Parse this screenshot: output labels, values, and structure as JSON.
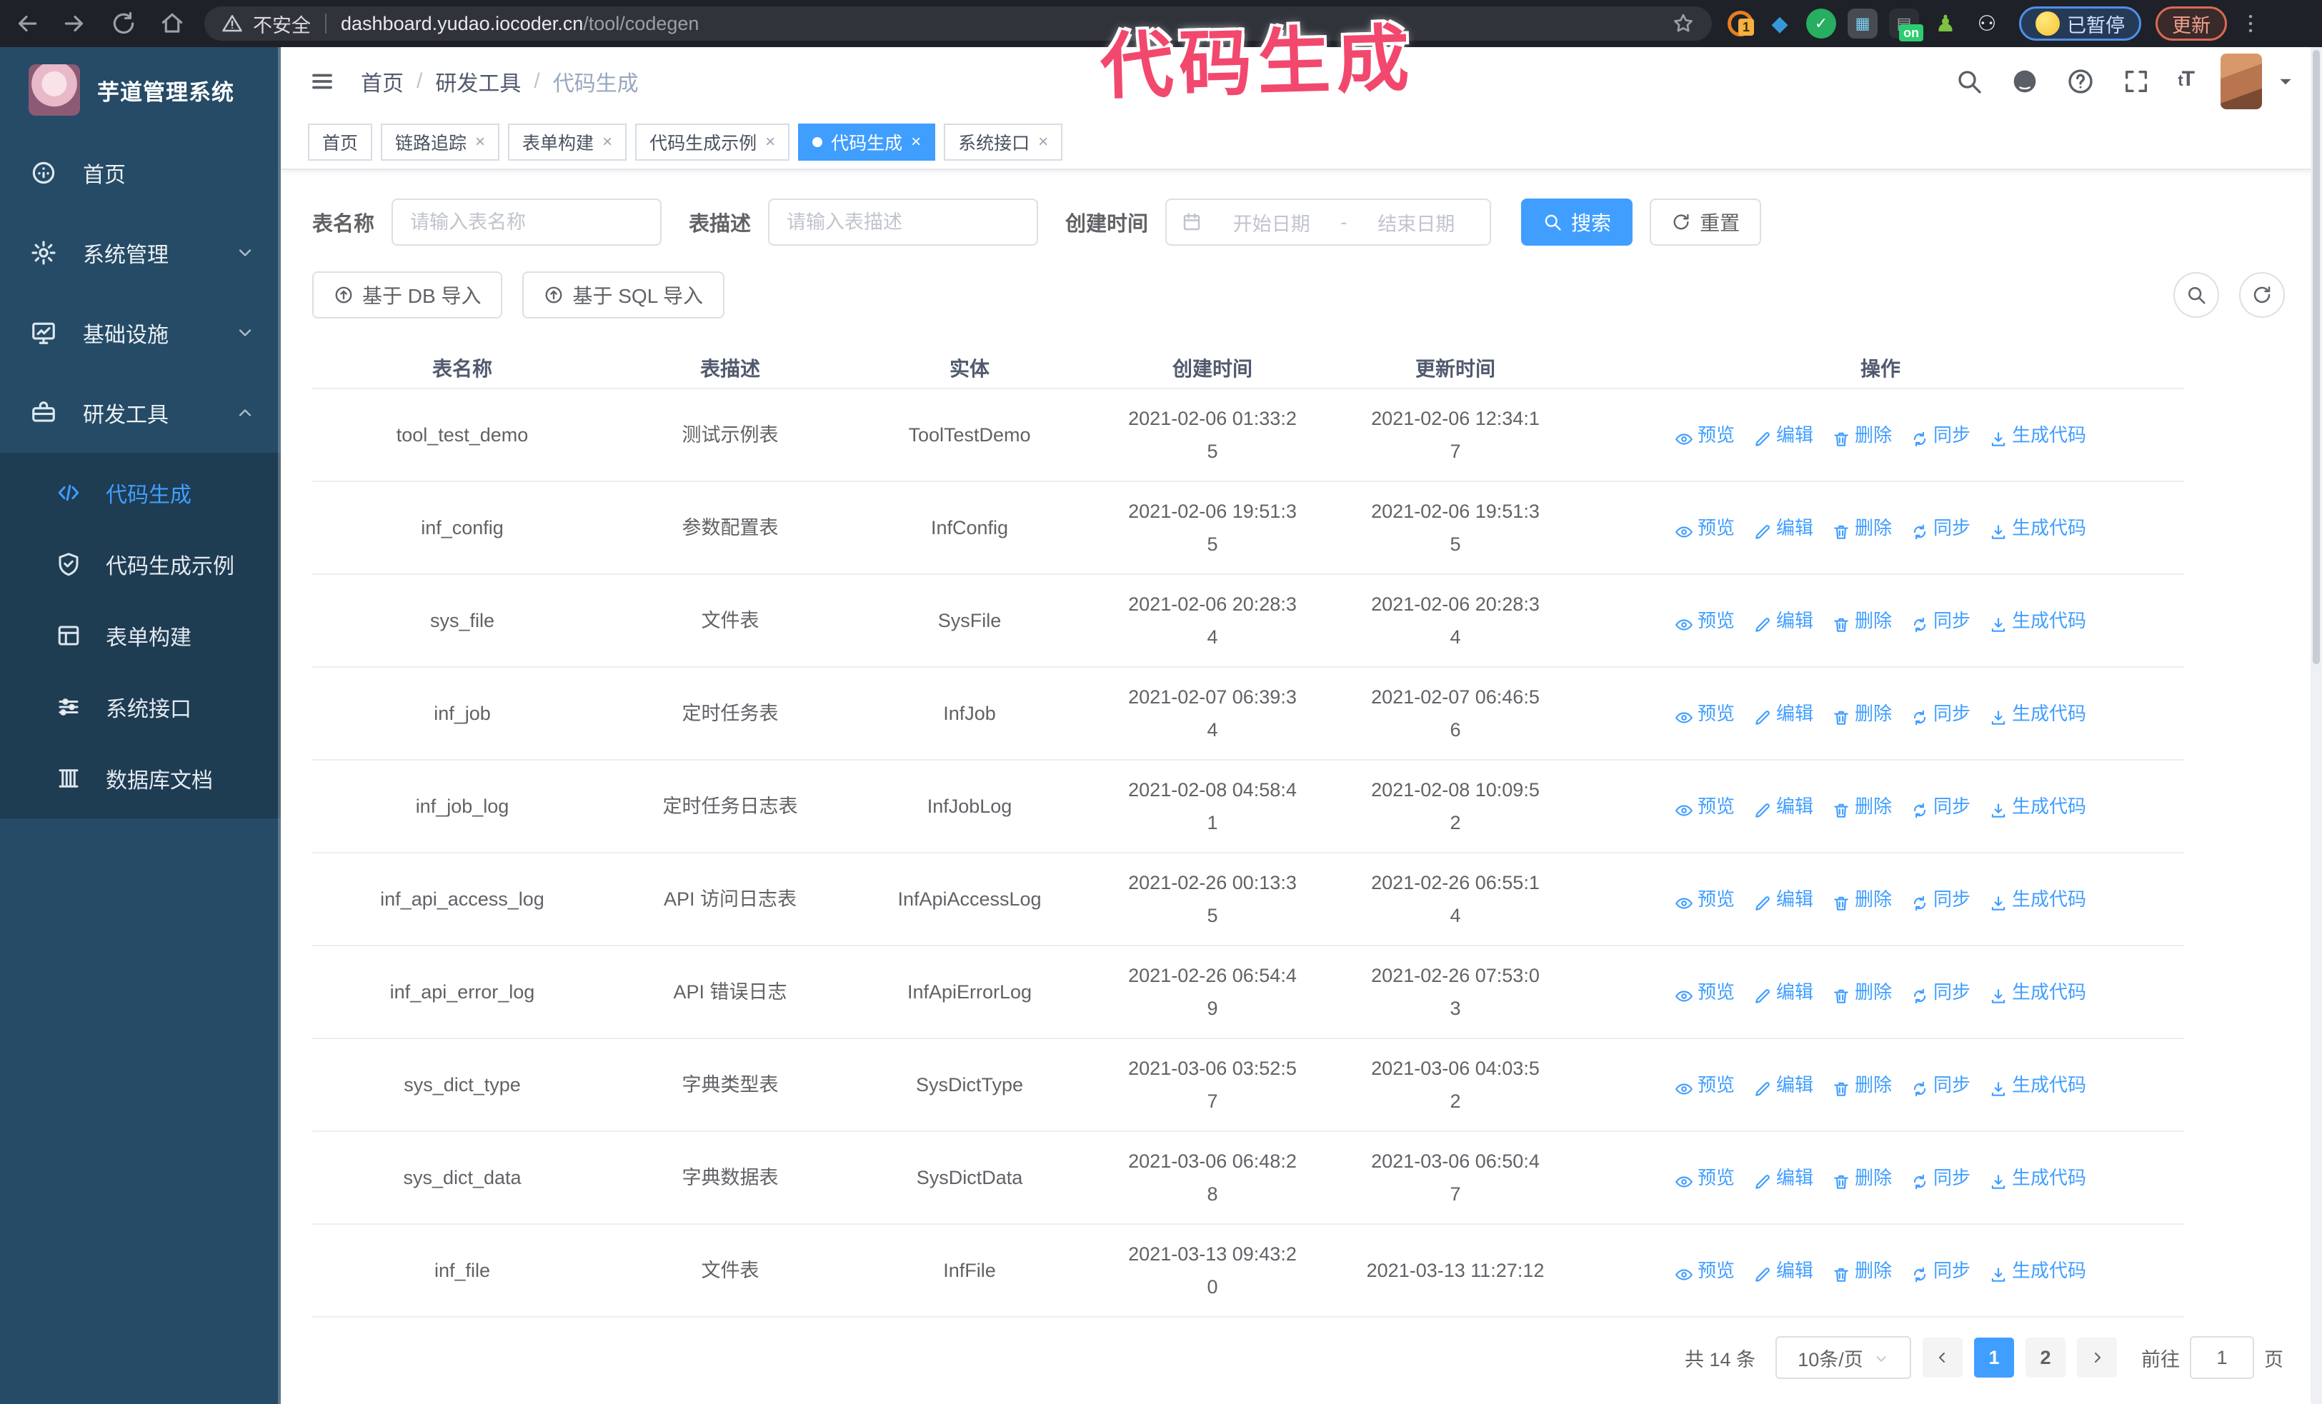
{
  "colors": {
    "primary": "#409EFF",
    "sidebar_bg": "#254b66",
    "submenu_bg": "#1e3c52",
    "chrome_bg": "#1e2127",
    "annotation_pink": "#f2486e"
  },
  "browser": {
    "security_label": "不安全",
    "url_host": "dashboard.yudao.iocoder.cn",
    "url_path": "/tool/codegen",
    "paused_badge": "已暂停",
    "update_button": "更新",
    "ext_badge_count": "1",
    "ext_badge_on": "on"
  },
  "annotation": {
    "text": "代码生成"
  },
  "sidebar": {
    "title": "芋道管理系统",
    "items": [
      {
        "label": "首页",
        "icon": "dashboard"
      },
      {
        "label": "系统管理",
        "icon": "gear",
        "chevron": "down"
      },
      {
        "label": "基础设施",
        "icon": "monitor",
        "chevron": "down"
      },
      {
        "label": "研发工具",
        "icon": "toolbox",
        "chevron": "up"
      }
    ],
    "subitems": [
      {
        "label": "代码生成",
        "icon": "code",
        "active": true
      },
      {
        "label": "代码生成示例",
        "icon": "shield",
        "active": false
      },
      {
        "label": "表单构建",
        "icon": "form",
        "active": false
      },
      {
        "label": "系统接口",
        "icon": "sliders",
        "active": false
      },
      {
        "label": "数据库文档",
        "icon": "database",
        "active": false
      }
    ]
  },
  "header": {
    "breadcrumb": [
      "首页",
      "研发工具",
      "代码生成"
    ],
    "separator": "/"
  },
  "tabs": [
    {
      "label": "首页",
      "closable": false,
      "active": false
    },
    {
      "label": "链路追踪",
      "closable": true,
      "active": false
    },
    {
      "label": "表单构建",
      "closable": true,
      "active": false
    },
    {
      "label": "代码生成示例",
      "closable": true,
      "active": false
    },
    {
      "label": "代码生成",
      "closable": true,
      "active": true
    },
    {
      "label": "系统接口",
      "closable": true,
      "active": false
    }
  ],
  "filters": {
    "table_name_label": "表名称",
    "table_name_placeholder": "请输入表名称",
    "table_desc_label": "表描述",
    "table_desc_placeholder": "请输入表描述",
    "create_time_label": "创建时间",
    "date_start_placeholder": "开始日期",
    "date_separator": "-",
    "date_end_placeholder": "结束日期",
    "search_button": "搜索",
    "reset_button": "重置"
  },
  "toolbar": {
    "import_db_button": "基于 DB 导入",
    "import_sql_button": "基于 SQL 导入"
  },
  "table": {
    "columns": [
      "表名称",
      "表描述",
      "实体",
      "创建时间",
      "更新时间",
      "操作"
    ],
    "actions": [
      "预览",
      "编辑",
      "删除",
      "同步",
      "生成代码"
    ],
    "action_icons": [
      "eye",
      "pencil",
      "trash",
      "sync",
      "download"
    ],
    "rows": [
      [
        "tool_test_demo",
        "测试示例表",
        "ToolTestDemo",
        "2021-02-06 01:33:25",
        "2021-02-06 12:34:17"
      ],
      [
        "inf_config",
        "参数配置表",
        "InfConfig",
        "2021-02-06 19:51:35",
        "2021-02-06 19:51:35"
      ],
      [
        "sys_file",
        "文件表",
        "SysFile",
        "2021-02-06 20:28:34",
        "2021-02-06 20:28:34"
      ],
      [
        "inf_job",
        "定时任务表",
        "InfJob",
        "2021-02-07 06:39:34",
        "2021-02-07 06:46:56"
      ],
      [
        "inf_job_log",
        "定时任务日志表",
        "InfJobLog",
        "2021-02-08 04:58:41",
        "2021-02-08 10:09:52"
      ],
      [
        "inf_api_access_log",
        "API 访问日志表",
        "InfApiAccessLog",
        "2021-02-26 00:13:35",
        "2021-02-26 06:55:14"
      ],
      [
        "inf_api_error_log",
        "API 错误日志",
        "InfApiErrorLog",
        "2021-02-26 06:54:49",
        "2021-02-26 07:53:03"
      ],
      [
        "sys_dict_type",
        "字典类型表",
        "SysDictType",
        "2021-03-06 03:52:57",
        "2021-03-06 04:03:52"
      ],
      [
        "sys_dict_data",
        "字典数据表",
        "SysDictData",
        "2021-03-06 06:48:28",
        "2021-03-06 06:50:47"
      ],
      [
        "inf_file",
        "文件表",
        "InfFile",
        "2021-03-13 09:43:20",
        "2021-03-13 11:27:12"
      ]
    ]
  },
  "pagination": {
    "total": "共 14 条",
    "page_size": "10条/页",
    "pages": [
      "1",
      "2"
    ],
    "active_page": "1",
    "goto_label": "前往",
    "goto_value": "1",
    "goto_suffix": "页"
  }
}
